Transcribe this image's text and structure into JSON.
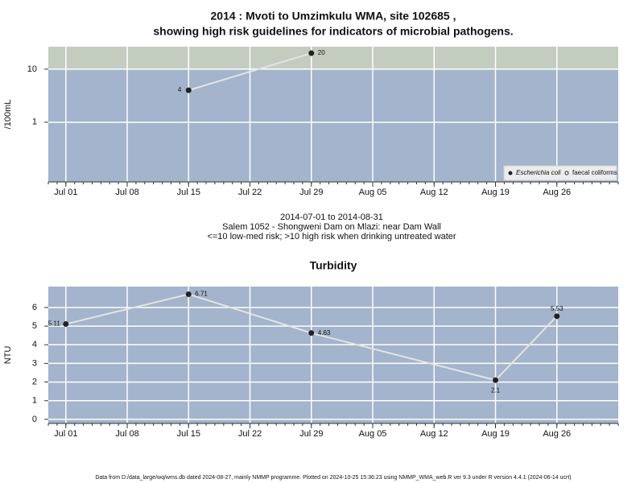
{
  "chart_data": [
    {
      "type": "line",
      "title": "2014 : Mvoti to Umzimkulu WMA, site 102685 ,",
      "subtitle": "showing high risk guidelines for indicators of microbial pathogens.",
      "y_label": "/100mL",
      "log_y": true,
      "threshold": 10,
      "x": [
        "Jul 15",
        "Jul 29"
      ],
      "series": [
        {
          "name": "Escherichia coli",
          "color": "#222222",
          "values": [
            4,
            20
          ]
        },
        {
          "name": "faecal coliforms",
          "color": "#ffffff",
          "values": [
            null,
            null
          ]
        }
      ],
      "xlim": [
        "Jun 29",
        "Sep 02"
      ],
      "xticks": [
        "Jul 01",
        "Jul 08",
        "Jul 15",
        "Jul 22",
        "Jul 29",
        "Aug 05",
        "Aug 12",
        "Aug 19",
        "Aug 26"
      ],
      "ylim": [
        0.075,
        26.5
      ],
      "yticks": [
        1,
        10
      ],
      "grid": true,
      "legend": "bottom-right",
      "caption": [
        "2014-07-01 to 2014-08-31",
        "Salem 1052 - Shongweni Dam on Mlazi: near Dam Wall",
        "<=10 low-med risk; >10 high risk when drinking untreated water"
      ]
    },
    {
      "type": "line",
      "title": "Turbidity",
      "y_label": "NTU",
      "x": [
        "Jul 01",
        "Jul 15",
        "Jul 29",
        "Aug 19",
        "Aug 26"
      ],
      "series": [
        {
          "name": "Turbidity",
          "color": "#222222",
          "values": [
            5.11,
            6.71,
            4.63,
            2.1,
            5.53
          ]
        }
      ],
      "xlim": [
        "Jun 29",
        "Sep 02"
      ],
      "xticks": [
        "Jul 01",
        "Jul 08",
        "Jul 15",
        "Jul 22",
        "Jul 29",
        "Aug 05",
        "Aug 12",
        "Aug 19",
        "Aug 26"
      ],
      "ylim": [
        -0.22,
        7.12
      ],
      "yticks": [
        0,
        1,
        2,
        3,
        4,
        5,
        6
      ],
      "grid": true
    }
  ],
  "footer": "Data from D:/data_large/wq/wms.db dated 2024-08-27, mainly NMMP programme. Plotted on 2024-10-25 15:36:23 using NMMP_WMA_web.R ver 9.3 under R version 4.4.1 (2024-06-14 ucrt)"
}
